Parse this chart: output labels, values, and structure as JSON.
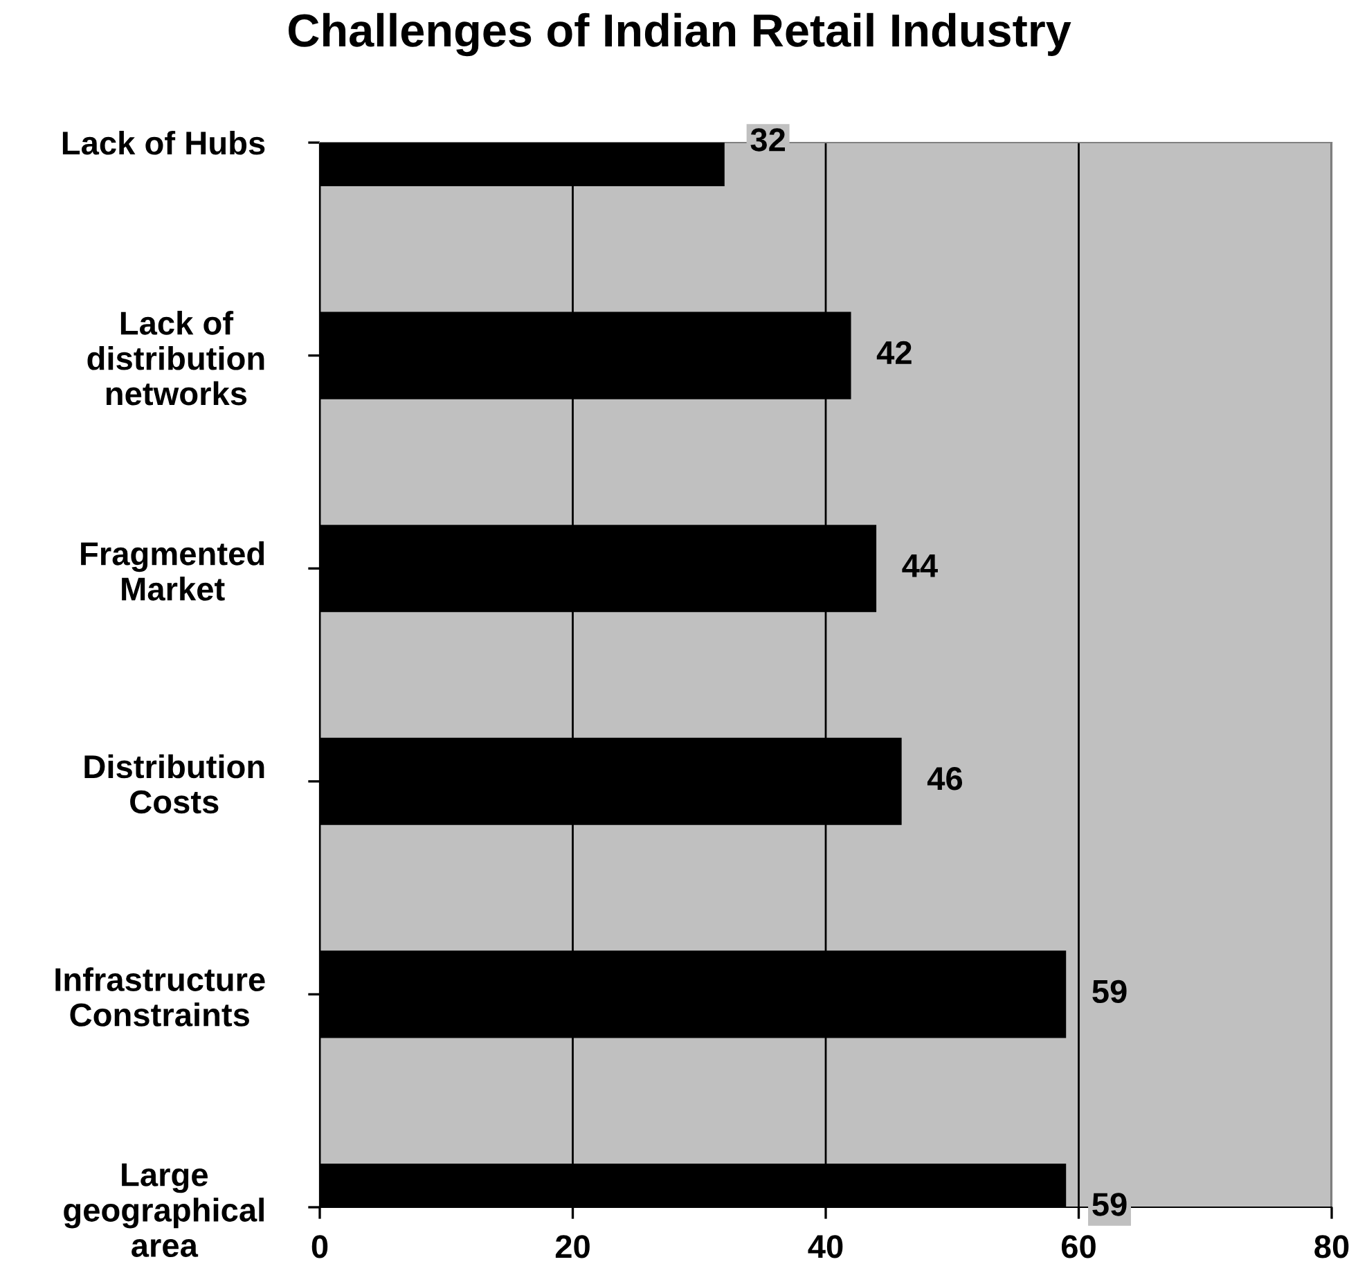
{
  "chart_data": {
    "type": "bar",
    "orientation": "horizontal",
    "title": "Challenges of Indian Retail Industry",
    "categories": [
      "Lack of Hubs",
      "Lack of\ndistribution\nnetworks",
      "Fragmented\nMarket",
      "Distribution\nCosts",
      "Infrastructure\nConstraints",
      "Large\ngeographical\narea"
    ],
    "values": [
      32,
      42,
      44,
      46,
      59,
      59
    ],
    "color": "#000000",
    "xlim": [
      0,
      80
    ],
    "xticks": [
      0,
      20,
      40,
      60,
      80
    ],
    "grid": "x",
    "data_labels": true,
    "legend": false
  }
}
